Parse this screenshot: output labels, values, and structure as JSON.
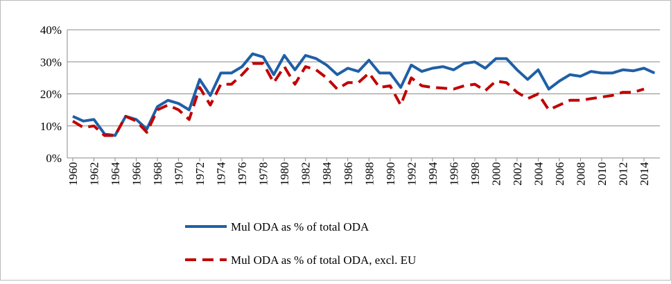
{
  "chart_data": {
    "type": "line",
    "x": [
      1960,
      1961,
      1962,
      1963,
      1964,
      1965,
      1966,
      1967,
      1968,
      1969,
      1970,
      1971,
      1972,
      1973,
      1974,
      1975,
      1976,
      1977,
      1978,
      1979,
      1980,
      1981,
      1982,
      1983,
      1984,
      1985,
      1986,
      1987,
      1988,
      1989,
      1990,
      1991,
      1992,
      1993,
      1994,
      1995,
      1996,
      1997,
      1998,
      1999,
      2000,
      2001,
      2002,
      2003,
      2004,
      2005,
      2006,
      2007,
      2008,
      2009,
      2010,
      2011,
      2012,
      2013,
      2014,
      2015
    ],
    "xlim": [
      1960,
      2015
    ],
    "xticks": [
      1960,
      1962,
      1964,
      1966,
      1968,
      1970,
      1972,
      1974,
      1976,
      1978,
      1980,
      1982,
      1984,
      1986,
      1988,
      1990,
      1992,
      1994,
      1996,
      1998,
      2000,
      2002,
      2004,
      2006,
      2008,
      2010,
      2012,
      2014
    ],
    "ylim": [
      0,
      40
    ],
    "yticks": [
      {
        "value": 0,
        "label": "0%"
      },
      {
        "value": 10,
        "label": "10%"
      },
      {
        "value": 20,
        "label": "20%"
      },
      {
        "value": 30,
        "label": "30%"
      },
      {
        "value": 40,
        "label": "40%"
      }
    ],
    "grid": true,
    "legend": "bottom",
    "series": [
      {
        "name": "Mul ODA as % of total ODA",
        "color": "#1f5fa6",
        "dash": false,
        "values": [
          13,
          11.5,
          12,
          7.5,
          7,
          13,
          12,
          9,
          16,
          18,
          17,
          15,
          24.5,
          19.5,
          26.5,
          26.5,
          28.5,
          32.5,
          31.5,
          26,
          32,
          27.5,
          32,
          31,
          29,
          26,
          28,
          27,
          30.5,
          26.5,
          26.5,
          22,
          29,
          27,
          28,
          28.5,
          27.5,
          29.5,
          30,
          28,
          31,
          31,
          27.5,
          24.5,
          27.5,
          21.5,
          24,
          26,
          25.5,
          27,
          26.5,
          26.5,
          27.5,
          27.2,
          28,
          26.5
        ]
      },
      {
        "name": "Mul ODA as % of total ODA, excl. EU",
        "color": "#c00000",
        "dash": true,
        "values": [
          11.5,
          9.5,
          10,
          7,
          7,
          13,
          11.5,
          8,
          15,
          16.5,
          15,
          12,
          22,
          16.5,
          23,
          23,
          26,
          29.5,
          29.5,
          23.5,
          28.5,
          23,
          28.5,
          27.5,
          25,
          21.5,
          23.5,
          23.5,
          26.5,
          22,
          22.5,
          16.5,
          25,
          22.5,
          22,
          21.8,
          21.5,
          22.5,
          23,
          21,
          24,
          23.5,
          20.5,
          18.5,
          20,
          15,
          16.5,
          18,
          18,
          18.5,
          19,
          19.5,
          20.5,
          20.5,
          21.5,
          null
        ]
      }
    ]
  }
}
